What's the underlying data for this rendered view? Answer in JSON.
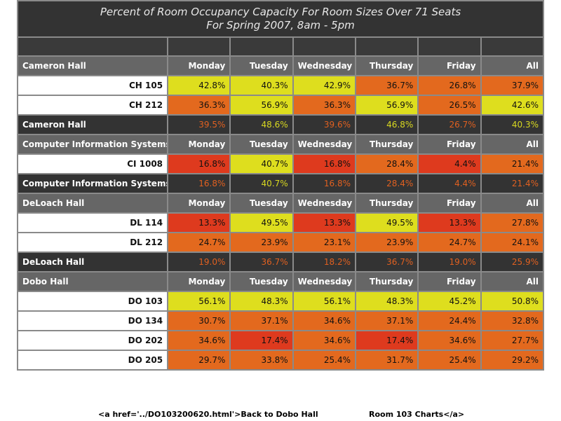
{
  "title": {
    "line1": "Percent of Room Occupancy Capacity For Room Sizes Over 71 Seats",
    "line2": "For Spring 2007, 8am - 5pm"
  },
  "days": [
    "Monday",
    "Tuesday",
    "Wednesday",
    "Thursday",
    "Friday",
    "All"
  ],
  "colors": {
    "yellow": "#dede1e",
    "orange": "#e3691e",
    "red": "#de3a1e",
    "header_bg": "#666666",
    "summary_bg": "#333333",
    "summary_text_yellow": "#d8d820",
    "summary_text_orange": "#e06020"
  },
  "buildings": [
    {
      "name": "Cameron Hall",
      "rooms": [
        {
          "name": "CH 105",
          "values": [
            "42.8%",
            "40.3%",
            "42.9%",
            "36.7%",
            "26.8%",
            "37.9%"
          ],
          "levels": [
            "yellow",
            "yellow",
            "yellow",
            "orange",
            "orange",
            "orange"
          ]
        },
        {
          "name": "CH 212",
          "values": [
            "36.3%",
            "56.9%",
            "36.3%",
            "56.9%",
            "26.5%",
            "42.6%"
          ],
          "levels": [
            "orange",
            "yellow",
            "orange",
            "yellow",
            "orange",
            "yellow"
          ]
        }
      ],
      "summary": {
        "name": "Cameron Hall",
        "values": [
          "39.5%",
          "48.6%",
          "39.6%",
          "46.8%",
          "26.7%",
          "40.3%"
        ],
        "levels": [
          "orange",
          "yellow",
          "orange",
          "yellow",
          "orange",
          "yellow"
        ]
      }
    },
    {
      "name": "Computer Information Systems",
      "rooms": [
        {
          "name": "CI 1008",
          "values": [
            "16.8%",
            "40.7%",
            "16.8%",
            "28.4%",
            "4.4%",
            "21.4%"
          ],
          "levels": [
            "red",
            "yellow",
            "red",
            "orange",
            "red",
            "orange"
          ]
        }
      ],
      "summary": {
        "name": "Computer Information Systems",
        "values": [
          "16.8%",
          "40.7%",
          "16.8%",
          "28.4%",
          "4.4%",
          "21.4%"
        ],
        "levels": [
          "orange",
          "yellow",
          "orange",
          "orange",
          "orange",
          "orange"
        ]
      }
    },
    {
      "name": "DeLoach Hall",
      "rooms": [
        {
          "name": "DL 114",
          "values": [
            "13.3%",
            "49.5%",
            "13.3%",
            "49.5%",
            "13.3%",
            "27.8%"
          ],
          "levels": [
            "red",
            "yellow",
            "red",
            "yellow",
            "red",
            "orange"
          ]
        },
        {
          "name": "DL 212",
          "values": [
            "24.7%",
            "23.9%",
            "23.1%",
            "23.9%",
            "24.7%",
            "24.1%"
          ],
          "levels": [
            "orange",
            "orange",
            "orange",
            "orange",
            "orange",
            "orange"
          ]
        }
      ],
      "summary": {
        "name": "DeLoach Hall",
        "values": [
          "19.0%",
          "36.7%",
          "18.2%",
          "36.7%",
          "19.0%",
          "25.9%"
        ],
        "levels": [
          "orange",
          "orange",
          "orange",
          "orange",
          "orange",
          "orange"
        ]
      }
    },
    {
      "name": "Dobo Hall",
      "rooms": [
        {
          "name": "DO 103",
          "values": [
            "56.1%",
            "48.3%",
            "56.1%",
            "48.3%",
            "45.2%",
            "50.8%"
          ],
          "levels": [
            "yellow",
            "yellow",
            "yellow",
            "yellow",
            "yellow",
            "yellow"
          ]
        },
        {
          "name": "DO 134",
          "values": [
            "30.7%",
            "37.1%",
            "34.6%",
            "37.1%",
            "24.4%",
            "32.8%"
          ],
          "levels": [
            "orange",
            "orange",
            "orange",
            "orange",
            "orange",
            "orange"
          ]
        },
        {
          "name": "DO 202",
          "values": [
            "34.6%",
            "17.4%",
            "34.6%",
            "17.4%",
            "34.6%",
            "27.7%"
          ],
          "levels": [
            "orange",
            "red",
            "orange",
            "red",
            "orange",
            "orange"
          ]
        },
        {
          "name": "DO 205",
          "values": [
            "29.7%",
            "33.8%",
            "25.4%",
            "31.7%",
            "25.4%",
            "29.2%"
          ],
          "levels": [
            "orange",
            "orange",
            "orange",
            "orange",
            "orange",
            "orange"
          ]
        }
      ],
      "summary": null
    }
  ],
  "footer": {
    "left_text": "<a href='../DO103200620.html'>Back to Dobo Hall",
    "right_text": "Room 103 Charts</a>"
  }
}
